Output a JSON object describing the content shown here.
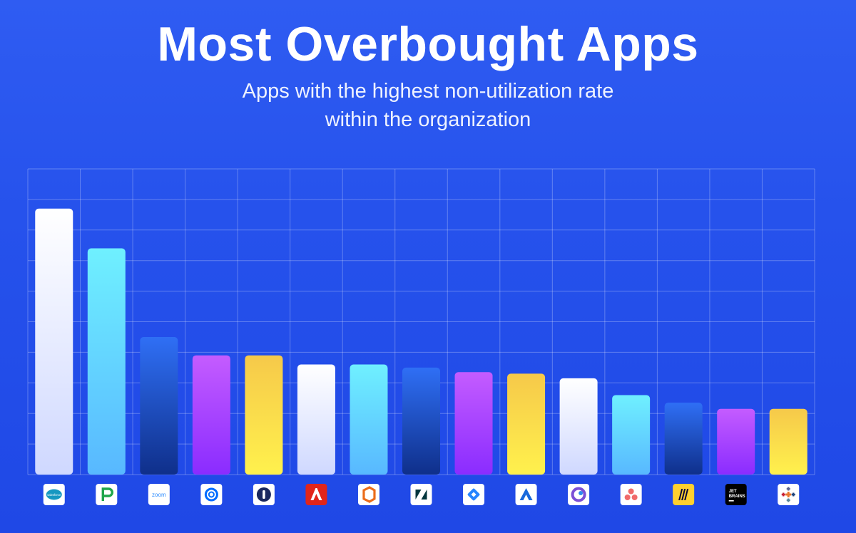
{
  "title": "Most Overbought Apps",
  "subtitle_line1": "Apps with the highest non-utilization rate",
  "subtitle_line2": "within the organization",
  "chart_data": {
    "type": "bar",
    "title": "Most Overbought Apps",
    "categories": [
      "salesforce",
      "pendo",
      "zoom",
      "calendly",
      "1password",
      "adobe",
      "office",
      "zendesk",
      "jira",
      "atlassian",
      "microsoft-loop",
      "asana",
      "miro",
      "jetbrains",
      "tableau"
    ],
    "values": [
      87,
      74,
      45,
      39,
      39,
      36,
      36,
      35,
      33.5,
      33,
      31.5,
      26,
      23.5,
      21.5,
      21.5
    ],
    "ylim": [
      0,
      100
    ],
    "grid": true,
    "legend": "none",
    "bar_colors": [
      [
        "#ffffff",
        "#cfd8ff"
      ],
      [
        "#6ff0ff",
        "#58b8ff"
      ],
      [
        "#2f6ff5",
        "#0f2f8a"
      ],
      [
        "#c45cff",
        "#8a2cff"
      ],
      [
        "#f6c94a",
        "#fff14d"
      ],
      [
        "#ffffff",
        "#cfd8ff"
      ],
      [
        "#6ff0ff",
        "#58b8ff"
      ],
      [
        "#2f6ff5",
        "#0f2f8a"
      ],
      [
        "#c45cff",
        "#8a2cff"
      ],
      [
        "#f6c94a",
        "#fff14d"
      ],
      [
        "#ffffff",
        "#cfd8ff"
      ],
      [
        "#6ff0ff",
        "#58b8ff"
      ],
      [
        "#2f6ff5",
        "#0f2f8a"
      ],
      [
        "#c45cff",
        "#8a2cff"
      ],
      [
        "#f6c94a",
        "#fff14d"
      ]
    ],
    "logo_texts": {
      "salesforce": "salesforce",
      "zoom": "zoom",
      "jetbrains_line1": "JET",
      "jetbrains_line2": "BRAINS"
    }
  }
}
